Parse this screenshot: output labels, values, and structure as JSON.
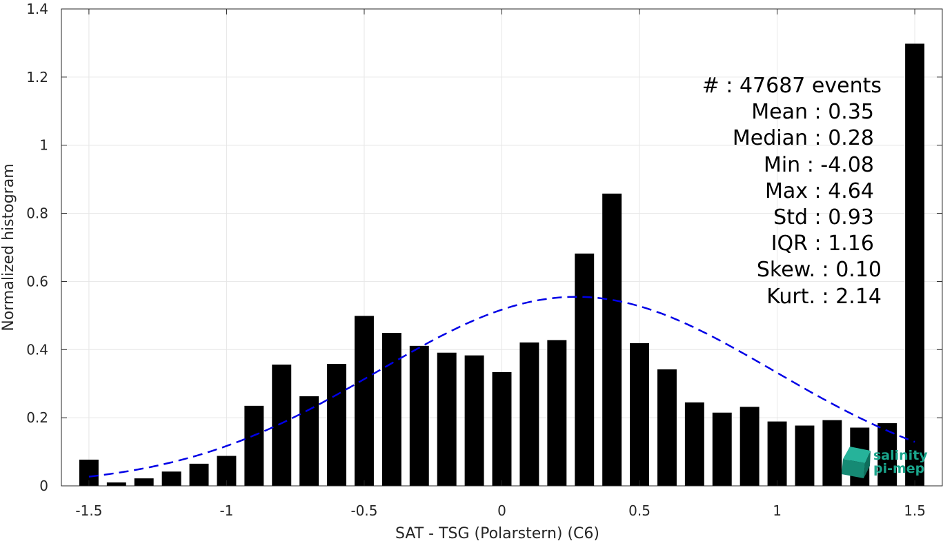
{
  "chart_data": {
    "type": "bar",
    "xlabel": "SAT - TSG (Polarstern) (C6)",
    "ylabel": "Normalized histogram",
    "xlim": [
      -1.6,
      1.6
    ],
    "ylim": [
      0,
      1.4
    ],
    "x_ticks": [
      -1.5,
      -1,
      -0.5,
      0,
      0.5,
      1,
      1.5
    ],
    "x_tick_labels": [
      "-1.5",
      "-1",
      "-0.5",
      "0",
      "0.5",
      "1",
      "1.5"
    ],
    "y_ticks": [
      0,
      0.2,
      0.4,
      0.6,
      0.8,
      1,
      1.2,
      1.4
    ],
    "y_tick_labels": [
      "0",
      "0.2",
      "0.4",
      "0.6",
      "0.8",
      "1",
      "1.2",
      "1.4"
    ],
    "grid": true,
    "bar_width": 0.07,
    "bar_color": "#000000",
    "x": [
      -1.5,
      -1.4,
      -1.3,
      -1.2,
      -1.1,
      -1.0,
      -0.9,
      -0.8,
      -0.7,
      -0.6,
      -0.5,
      -0.4,
      -0.3,
      -0.2,
      -0.1,
      0.0,
      0.1,
      0.2,
      0.3,
      0.4,
      0.5,
      0.6,
      0.7,
      0.8,
      0.9,
      1.0,
      1.1,
      1.2,
      1.3,
      1.4,
      1.5
    ],
    "values": [
      0.077,
      0.01,
      0.022,
      0.042,
      0.065,
      0.088,
      0.235,
      0.356,
      0.263,
      0.358,
      0.499,
      0.449,
      0.411,
      0.391,
      0.383,
      0.334,
      0.421,
      0.428,
      0.682,
      0.858,
      0.419,
      0.342,
      0.245,
      0.215,
      0.232,
      0.189,
      0.177,
      0.193,
      0.171,
      0.184,
      1.298
    ],
    "fit_curve": {
      "style": "dashed",
      "color": "#0000e6",
      "mean": 0.27,
      "std": 0.72,
      "peak": 0.555,
      "x_range": [
        -1.5,
        1.5
      ]
    }
  },
  "stats": {
    "lines": [
      "#  : 47687 events",
      "Mean : 0.35",
      "Median : 0.28",
      "Min : -4.08",
      "Max : 4.64",
      "Std : 0.93",
      "IQR : 1.16",
      "Skew. : 0.10",
      "Kurt. : 2.14"
    ]
  },
  "logo": {
    "line1": "salinity",
    "line2": "pi-mep",
    "color": "#1aa58c"
  }
}
